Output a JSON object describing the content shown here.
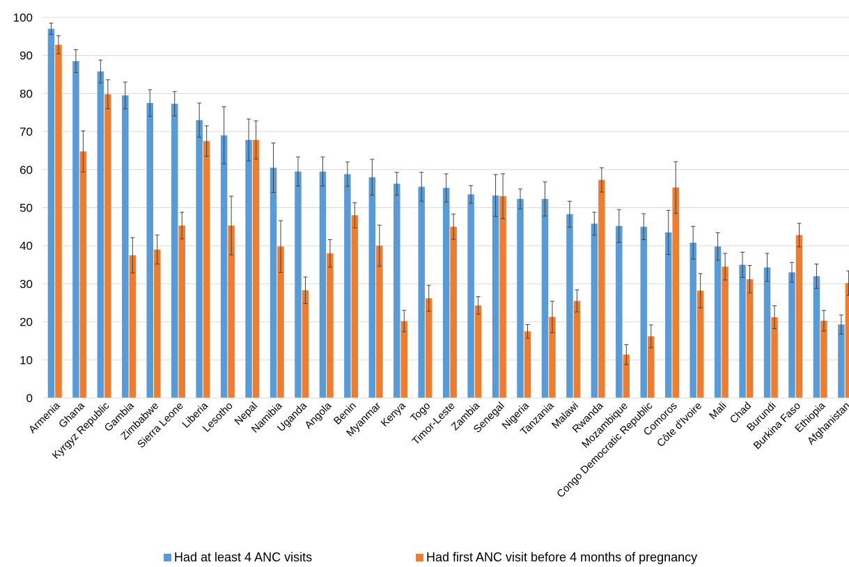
{
  "chart_data": {
    "type": "bar",
    "title": "",
    "xlabel": "",
    "ylabel": "",
    "ylim": [
      0,
      100
    ],
    "yticks": [
      0,
      10,
      20,
      30,
      40,
      50,
      60,
      70,
      80,
      90,
      100
    ],
    "grid": true,
    "legend_position": "bottom",
    "categories": [
      "Armenia",
      "Ghana",
      "Kyrgyz Republic",
      "Gambia",
      "Zimbabwe",
      "Sierra Leone",
      "Liberia",
      "Lesotho",
      "Nepal",
      "Namibia",
      "Uganda",
      "Angola",
      "Benin",
      "Myanmar",
      "Kenya",
      "Togo",
      "Timor-Leste",
      "Zambia",
      "Senegal",
      "Nigeria",
      "Tanzania",
      "Malawi",
      "Rwanda",
      "Mozambique",
      "Congo Democratic Republic",
      "Comoros",
      "Côte d'Ivoire",
      "Mali",
      "Chad",
      "Burundi",
      "Burkina Faso",
      "Ethiopia",
      "Afghanistan"
    ],
    "series": [
      {
        "name": "Had at least 4 ANC visits",
        "color": "#5b9bd5",
        "values": [
          97,
          88.5,
          85.8,
          79.5,
          77.5,
          77.3,
          73,
          69,
          67.8,
          60.5,
          59.5,
          59.5,
          58.8,
          58,
          56.3,
          55.5,
          55.2,
          53.5,
          53.2,
          52.3,
          52.3,
          48.3,
          45.8,
          45.2,
          45,
          43.5,
          40.8,
          39.8,
          35,
          34.3,
          33,
          32,
          19.3
        ],
        "err_low": [
          1.5,
          3,
          3,
          3.5,
          3.5,
          3.2,
          4.5,
          7.5,
          5.5,
          6.5,
          3.8,
          3.8,
          3.2,
          4.7,
          3,
          3.8,
          3.7,
          2.3,
          5.5,
          2.6,
          4.5,
          3.4,
          3,
          4.3,
          3.4,
          5.8,
          4.3,
          3.6,
          3.3,
          3.7,
          2.6,
          3.2,
          2.5
        ],
        "err_high": [
          1.5,
          3,
          3,
          3.5,
          3.5,
          3.2,
          4.5,
          7.5,
          5.5,
          6.5,
          3.8,
          3.8,
          3.2,
          4.7,
          3,
          3.8,
          3.7,
          2.3,
          5.5,
          2.6,
          4.5,
          3.4,
          3,
          4.3,
          3.4,
          5.8,
          4.3,
          3.6,
          3.3,
          3.7,
          2.6,
          3.2,
          2.5
        ]
      },
      {
        "name": "Had first ANC visit before 4 months of pregnancy",
        "color": "#ed7d31",
        "values": [
          92.8,
          64.8,
          79.8,
          37.5,
          39,
          45.3,
          67.5,
          45.3,
          67.8,
          39.8,
          28.3,
          38,
          48,
          40,
          20.2,
          26.2,
          45,
          24.3,
          53,
          17.5,
          21.3,
          25.5,
          57.3,
          11.4,
          16.2,
          55.3,
          28.2,
          34.5,
          31.2,
          21.2,
          42.8,
          20.3,
          30.2
        ],
        "err_low": [
          2.4,
          5.4,
          3.8,
          4.6,
          3.8,
          3.5,
          4,
          7.7,
          5,
          6.8,
          3.5,
          3.6,
          3.3,
          5.4,
          2.8,
          3.4,
          3.3,
          2.3,
          5.9,
          1.8,
          4.1,
          2.9,
          3.2,
          2.6,
          3,
          6.8,
          4.5,
          3.5,
          3.6,
          3,
          3.1,
          2.7,
          3.2
        ],
        "err_high": [
          2.4,
          5.4,
          3.8,
          4.6,
          3.8,
          3.5,
          4,
          7.7,
          5,
          6.8,
          3.5,
          3.6,
          3.3,
          5.4,
          2.8,
          3.4,
          3.3,
          2.3,
          5.9,
          1.8,
          4.1,
          2.9,
          3.2,
          2.6,
          3,
          6.8,
          4.5,
          3.5,
          3.6,
          3,
          3.1,
          2.7,
          3.2
        ]
      }
    ]
  }
}
